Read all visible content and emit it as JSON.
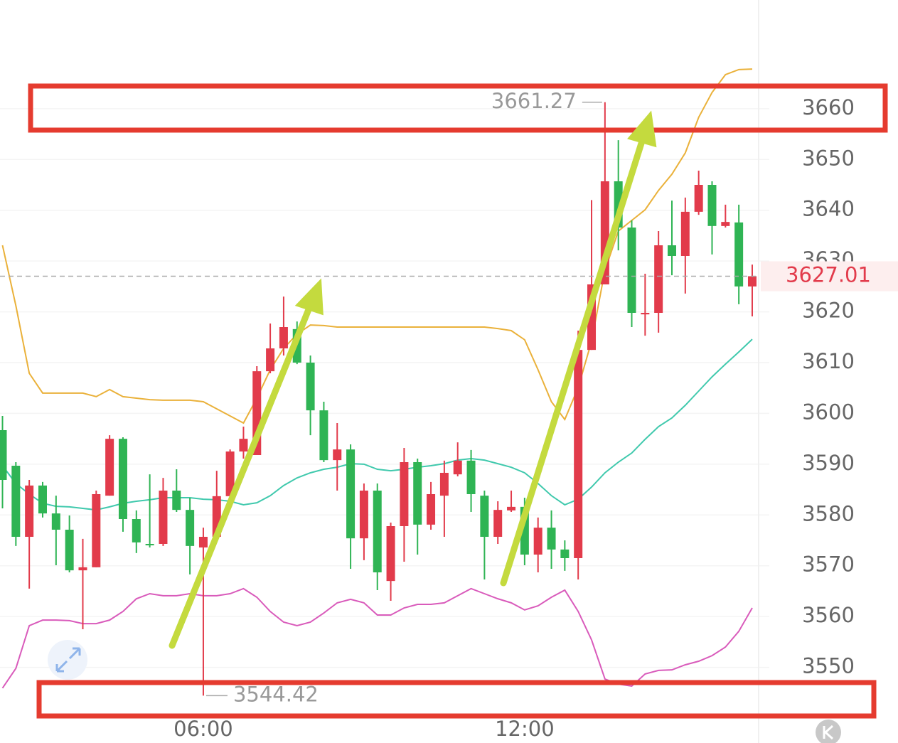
{
  "chart_data": {
    "type": "candlestick",
    "categories": [
      null,
      null,
      null,
      null,
      null,
      null,
      null,
      null,
      null,
      null,
      null,
      null,
      null,
      null,
      null,
      "06:00",
      null,
      null,
      null,
      null,
      null,
      null,
      null,
      null,
      null,
      null,
      null,
      null,
      null,
      null,
      null,
      null,
      null,
      null,
      null,
      null,
      null,
      null,
      null,
      "12:00",
      null,
      null,
      null,
      null,
      null,
      null,
      null,
      null,
      null,
      null,
      null,
      null,
      null,
      null,
      null,
      null,
      null
    ],
    "open": [
      3596.7,
      3589.7,
      3575.7,
      3585.8,
      3580.3,
      3577.1,
      3569.1,
      3569.7,
      3583.8,
      3595.0,
      3579.2,
      3574.3,
      3574.3,
      3584.8,
      3581.0,
      3573.6,
      3575.7,
      3583.7,
      3592.5,
      3591.8,
      3608.3,
      3612.8,
      3616.6,
      3610.0,
      3600.6,
      3590.8,
      3592.9,
      3575.4,
      3584.8,
      3567.0,
      3577.8,
      3590.4,
      3578.1,
      3583.8,
      3588.0,
      3590.7,
      3583.8,
      3575.7,
      3580.9,
      3581.6,
      3572.2,
      3577.5,
      3573.2,
      3571.5,
      3612.5,
      3625.4,
      3645.7,
      3636.6,
      3619.5,
      3619.8,
      3633.1,
      3631.0,
      3639.7,
      3645.0,
      3636.9,
      3637.6,
      3625.0
    ],
    "high": [
      3599.5,
      3590.4,
      3586.9,
      3586.5,
      3583.8,
      3579.9,
      3575.3,
      3584.8,
      3595.7,
      3595.3,
      3580.9,
      3588.0,
      3587.3,
      3589.0,
      3583.4,
      3577.5,
      3588.7,
      3592.9,
      3597.4,
      3609.3,
      3617.7,
      3623.0,
      3618.1,
      3611.4,
      3602.3,
      3598.1,
      3593.9,
      3586.2,
      3586.2,
      3578.5,
      3593.2,
      3591.1,
      3586.5,
      3590.7,
      3594.3,
      3592.8,
      3584.8,
      3582.7,
      3584.8,
      3583.4,
      3579.5,
      3580.9,
      3575.0,
      3616.3,
      3642.0,
      3661.27,
      3653.8,
      3638.0,
      3627.5,
      3635.9,
      3641.9,
      3642.5,
      3647.8,
      3645.7,
      3641.1,
      3641.1,
      3629.3
    ],
    "low": [
      3581.3,
      3573.9,
      3565.5,
      3579.5,
      3570.1,
      3568.7,
      3557.5,
      3569.7,
      3583.8,
      3576.7,
      3572.5,
      3573.6,
      3573.9,
      3580.6,
      3568.3,
      3544.42,
      3575.3,
      3583.4,
      3591.1,
      3591.8,
      3607.9,
      3611.4,
      3609.7,
      3595.7,
      3590.4,
      3584.8,
      3569.4,
      3571.1,
      3565.2,
      3563.1,
      3570.8,
      3572.2,
      3577.1,
      3575.7,
      3587.6,
      3580.6,
      3567.3,
      3574.3,
      3580.6,
      3570.1,
      3568.7,
      3569.4,
      3569.0,
      3567.3,
      3612.5,
      3625.4,
      3632.1,
      3617.0,
      3615.3,
      3615.9,
      3627.2,
      3623.6,
      3639.1,
      3631.3,
      3636.6,
      3621.5,
      3619.1
    ],
    "close": [
      3586.9,
      3575.7,
      3585.8,
      3580.3,
      3577.1,
      3569.1,
      3569.7,
      3584.1,
      3595.0,
      3579.2,
      3574.6,
      3574.1,
      3584.8,
      3581.0,
      3573.9,
      3575.7,
      3583.7,
      3592.5,
      3595.0,
      3608.3,
      3612.8,
      3617.0,
      3610.0,
      3600.6,
      3590.8,
      3592.9,
      3575.4,
      3584.8,
      3568.7,
      3577.8,
      3590.4,
      3578.1,
      3584.1,
      3588.3,
      3590.7,
      3584.1,
      3575.7,
      3581.0,
      3581.6,
      3572.2,
      3577.5,
      3573.2,
      3571.5,
      3612.5,
      3625.4,
      3645.7,
      3636.6,
      3619.8,
      3619.8,
      3633.1,
      3631.0,
      3639.7,
      3645.0,
      3636.9,
      3637.7,
      3625.0,
      3627.01
    ],
    "up_color": "#e23b4b",
    "down_color": "#2fb454",
    "lines": [
      {
        "color": "#eab13a",
        "values": [
          3633.1,
          3621.2,
          3607.9,
          3604.0,
          3604.0,
          3604.0,
          3604.0,
          3603.3,
          3604.7,
          3603.3,
          3603.0,
          3602.7,
          3602.6,
          3602.6,
          3602.6,
          3602.3,
          3600.9,
          3599.5,
          3598.1,
          3603.0,
          3608.6,
          3612.8,
          3615.6,
          3617.4,
          3617.3,
          3617.0,
          3617.0,
          3617.0,
          3617.0,
          3617.0,
          3617.0,
          3617.0,
          3617.0,
          3617.0,
          3617.0,
          3617.0,
          3617.0,
          3616.7,
          3616.3,
          3614.5,
          3608.6,
          3602.3,
          3598.8,
          3605.1,
          3614.2,
          3628.2,
          3635.9,
          3638.0,
          3640.1,
          3643.9,
          3647.1,
          3651.3,
          3658.3,
          3663.2,
          3666.7,
          3667.7,
          3667.8
        ]
      },
      {
        "color": "#40c9ad",
        "values": [
          3589.7,
          3586.2,
          3584.1,
          3582.3,
          3581.7,
          3581.6,
          3581.3,
          3581.0,
          3581.6,
          3582.3,
          3582.7,
          3583.0,
          3583.4,
          3583.4,
          3583.4,
          3583.1,
          3583.0,
          3582.7,
          3582.0,
          3582.4,
          3583.8,
          3585.8,
          3587.3,
          3588.3,
          3589.0,
          3589.4,
          3590.1,
          3590.0,
          3589.0,
          3588.7,
          3589.0,
          3589.4,
          3589.7,
          3590.1,
          3590.8,
          3591.1,
          3590.8,
          3590.1,
          3589.4,
          3588.3,
          3586.2,
          3583.8,
          3582.0,
          3583.1,
          3585.5,
          3588.3,
          3590.4,
          3592.2,
          3594.9,
          3597.4,
          3599.1,
          3601.6,
          3604.4,
          3607.2,
          3609.7,
          3612.1,
          3614.6
        ]
      },
      {
        "color": "#d95bbb",
        "values": [
          3545.9,
          3549.8,
          3558.2,
          3559.3,
          3559.3,
          3559.2,
          3558.6,
          3558.6,
          3559.3,
          3561.0,
          3563.5,
          3564.5,
          3564.1,
          3564.1,
          3564.5,
          3564.1,
          3564.1,
          3564.5,
          3565.5,
          3563.8,
          3561.0,
          3558.9,
          3558.2,
          3558.9,
          3560.7,
          3562.7,
          3563.4,
          3562.7,
          3560.3,
          3560.3,
          3561.7,
          3562.4,
          3562.4,
          3562.7,
          3564.1,
          3565.5,
          3564.5,
          3563.5,
          3562.7,
          3561.3,
          3562.1,
          3563.8,
          3565.2,
          3561.0,
          3555.4,
          3547.7,
          3546.7,
          3546.3,
          3548.7,
          3549.4,
          3549.5,
          3550.5,
          3551.2,
          3552.3,
          3554.0,
          3557.1,
          3561.7
        ]
      }
    ],
    "ylim": [
      3540,
      3681.4
    ],
    "yticks": [
      3550,
      3560,
      3570,
      3580,
      3590,
      3600,
      3610,
      3620,
      3630,
      3640,
      3650,
      3660
    ],
    "grid": true,
    "last_price_line": true
  }
}
